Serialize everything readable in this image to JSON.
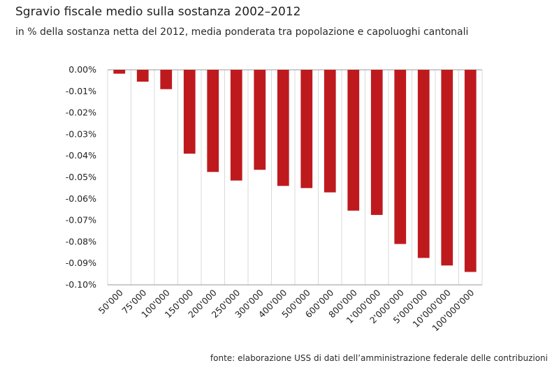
{
  "header": {
    "title": "Sgravio fiscale medio sulla sostanza 2002–2012",
    "subtitle": "in % della sostanza netta del 2012, media ponderata tra popolazione e capoluoghi cantonali"
  },
  "footer": {
    "source": "fonte: elaborazione USS di dati dell’amministrazione federale delle contribuzioni"
  },
  "colors": {
    "bar": "#be1a1e",
    "grid": "#d9d9d9",
    "axis": "#999999",
    "text": "#222222"
  },
  "chart_data": {
    "type": "bar",
    "title": "Sgravio fiscale medio sulla sostanza 2002–2012",
    "subtitle": "in % della sostanza netta del 2012, media ponderata tra popolazione e capoluoghi cantonali",
    "xlabel": "",
    "ylabel": "",
    "categories": [
      "50'000",
      "75'000",
      "100'000",
      "150'000",
      "200'000",
      "250'000",
      "300'000",
      "400'000",
      "500'000",
      "600'000",
      "800'000",
      "1'000'000",
      "2'000'000",
      "5'000'000",
      "10'000'000",
      "100'000'000"
    ],
    "values": [
      -0.0018,
      -0.0055,
      -0.009,
      -0.039,
      -0.0475,
      -0.0515,
      -0.0465,
      -0.054,
      -0.055,
      -0.057,
      -0.0655,
      -0.0675,
      -0.081,
      -0.0875,
      -0.091,
      -0.094
    ],
    "ylim": [
      -0.1,
      0.0
    ],
    "yticks": [
      "0.00%",
      "-0.01%",
      "-0.02%",
      "-0.03%",
      "-0.04%",
      "-0.05%",
      "-0.06%",
      "-0.07%",
      "-0.08%",
      "-0.09%",
      "-0.10%"
    ],
    "grid": "vertical lines between categories",
    "legend": "none"
  }
}
